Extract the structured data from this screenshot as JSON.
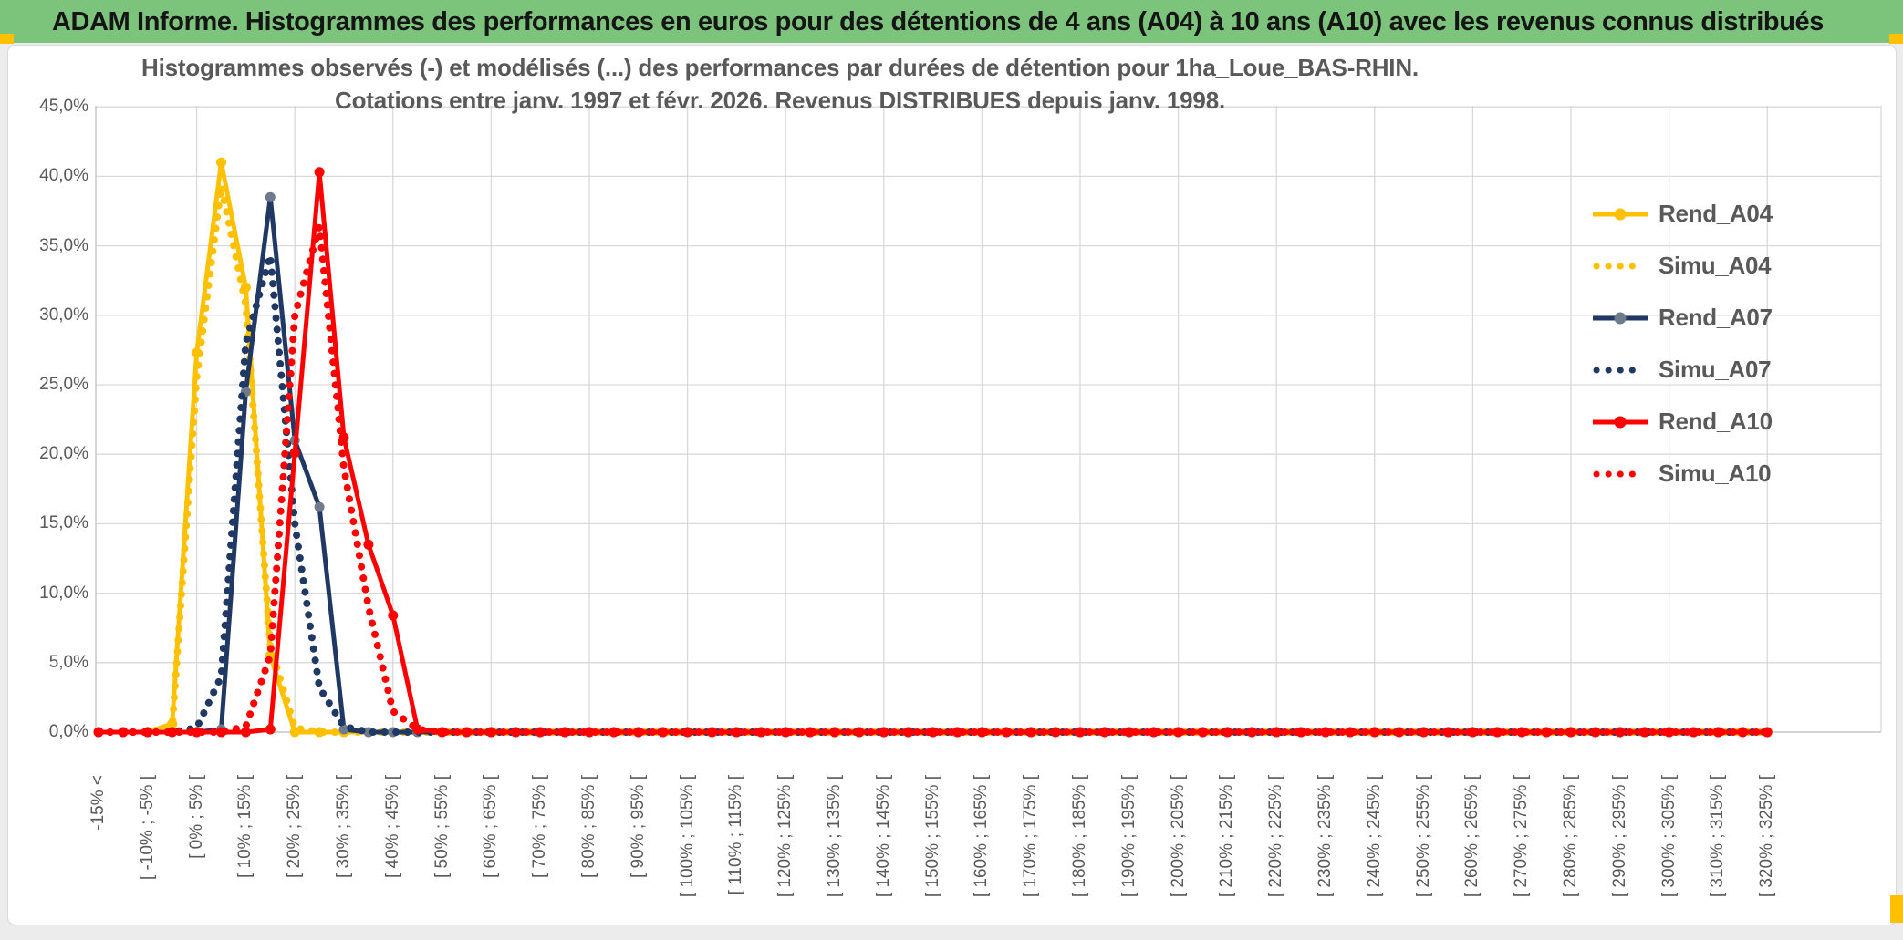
{
  "window": {
    "header_title": "ADAM Informe. Histogrammes des performances en euros pour des détentions de 4 ans (A04) à 10 ans (A10) avec les revenus connus distribués",
    "header_bg": "#7CC47C",
    "accent_color": "#FFC000"
  },
  "chart_data": {
    "type": "line",
    "title": "Histogrammes observés (-) et modélisés (...) des performances par durées de détention pour 1ha_Loue_BAS-RHIN.",
    "subtitle": "Cotations entre janv. 1997 et févr. 2026. Revenus DISTRIBUES depuis janv. 1998.",
    "ylabel": "",
    "xlabel": "",
    "ylim": [
      0,
      45
    ],
    "y_tick_step_pct": 5,
    "y_ticks": [
      "0,0%",
      "5,0%",
      "10,0%",
      "15,0%",
      "20,0%",
      "25,0%",
      "30,0%",
      "35,0%",
      "40,0%",
      "45,0%"
    ],
    "grid": "horizontal every 5%, vertical every 4 bins",
    "legend_position": "right-inside",
    "text_color": "#595959",
    "gridline_color": "#D9D9D9",
    "axis_color": "#BFBFBF",
    "x_labels": [
      "-15% <",
      "",
      "[ -10% ; -5% [",
      "",
      "[ 0% ; 5% [",
      "",
      "[ 10% ; 15% [",
      "",
      "[ 20% ; 25% [",
      "",
      "[ 30% ; 35% [",
      "",
      "[ 40% ; 45% [",
      "",
      "[ 50% ; 55% [",
      "",
      "[ 60% ; 65% [",
      "",
      "[ 70% ; 75% [",
      "",
      "[ 80% ; 85% [",
      "",
      "[ 90% ; 95% [",
      "",
      "[ 100% ; 105% [",
      "",
      "[ 110% ; 115% [",
      "",
      "[ 120% ; 125% [",
      "",
      "[ 130% ; 135% [",
      "",
      "[ 140% ; 145% [",
      "",
      "[ 150% ; 155% [",
      "",
      "[ 160% ; 165% [",
      "",
      "[ 170% ; 175% [",
      "",
      "[ 180% ; 185% [",
      "",
      "[ 190% ; 195% [",
      "",
      "[ 200% ; 205% [",
      "",
      "[ 210% ; 215% [",
      "",
      "[ 220% ; 225% [",
      "",
      "[ 230% ; 235% [",
      "",
      "[ 240% ; 245% [",
      "",
      "[ 250% ; 255% [",
      "",
      "[ 260% ; 265% [",
      "",
      "[ 270% ; 275% [",
      "",
      "[ 280% ; 285% [",
      "",
      "[ 290% ; 295% [",
      "",
      "[ 300% ; 305% [",
      "",
      "[ 310% ; 315% [",
      "",
      "[ 320% ; 325% ["
    ],
    "series": [
      {
        "name": "Rend_A04",
        "color": "#FFC000",
        "style": "solid",
        "marker_color": "#FFC000",
        "values": [
          0,
          0,
          0,
          0.6,
          27.3,
          41,
          32,
          5.5,
          0,
          0,
          0,
          0,
          0,
          0,
          0,
          0,
          0,
          0,
          0,
          0,
          0,
          0,
          0,
          0,
          0,
          0,
          0,
          0,
          0,
          0,
          0,
          0,
          0,
          0,
          0,
          0,
          0,
          0,
          0,
          0,
          0,
          0,
          0,
          0,
          0,
          0,
          0,
          0,
          0,
          0,
          0,
          0,
          0,
          0,
          0,
          0,
          0,
          0,
          0,
          0,
          0,
          0,
          0,
          0,
          0,
          0,
          0,
          0,
          0
        ]
      },
      {
        "name": "Simu_A04",
        "color": "#FFC000",
        "style": "dotted",
        "values": [
          0,
          0,
          0,
          0.4,
          25.5,
          39.3,
          30.8,
          6.2,
          0.3,
          0,
          0,
          0,
          0,
          0,
          0,
          0,
          0,
          0,
          0,
          0,
          0,
          0,
          0,
          0,
          0,
          0,
          0,
          0,
          0,
          0,
          0,
          0,
          0,
          0,
          0,
          0,
          0,
          0,
          0,
          0,
          0,
          0,
          0,
          0,
          0,
          0,
          0,
          0,
          0,
          0,
          0,
          0,
          0,
          0,
          0,
          0,
          0,
          0,
          0,
          0,
          0,
          0,
          0,
          0,
          0,
          0,
          0,
          0,
          0
        ]
      },
      {
        "name": "Rend_A07",
        "color": "#1F3864",
        "style": "solid",
        "marker_color": "#6E7B8D",
        "values": [
          0,
          0,
          0,
          0,
          0,
          0.2,
          24.5,
          38.5,
          21,
          16.2,
          0.2,
          0,
          0,
          0,
          0,
          0,
          0,
          0,
          0,
          0,
          0,
          0,
          0,
          0,
          0,
          0,
          0,
          0,
          0,
          0,
          0,
          0,
          0,
          0,
          0,
          0,
          0,
          0,
          0,
          0,
          0,
          0,
          0,
          0,
          0,
          0,
          0,
          0,
          0,
          0,
          0,
          0,
          0,
          0,
          0,
          0,
          0,
          0,
          0,
          0,
          0,
          0,
          0,
          0,
          0,
          0,
          0,
          0,
          0
        ]
      },
      {
        "name": "Simu_A07",
        "color": "#1F3864",
        "style": "dotted",
        "values": [
          0,
          0,
          0,
          0,
          0.3,
          4,
          28,
          34.3,
          15,
          3.2,
          0.4,
          0,
          0,
          0,
          0,
          0,
          0,
          0,
          0,
          0,
          0,
          0,
          0,
          0,
          0,
          0,
          0,
          0,
          0,
          0,
          0,
          0,
          0,
          0,
          0,
          0,
          0,
          0,
          0,
          0,
          0,
          0,
          0,
          0,
          0,
          0,
          0,
          0,
          0,
          0,
          0,
          0,
          0,
          0,
          0,
          0,
          0,
          0,
          0,
          0,
          0,
          0,
          0,
          0,
          0,
          0,
          0,
          0,
          0
        ]
      },
      {
        "name": "Rend_A10",
        "color": "#FF0000",
        "style": "solid",
        "marker_color": "#FF0000",
        "values": [
          0,
          0,
          0,
          0,
          0,
          0,
          0,
          0.2,
          20.1,
          40.3,
          21.2,
          13.5,
          8.4,
          0.2,
          0,
          0,
          0,
          0,
          0,
          0,
          0,
          0,
          0,
          0,
          0,
          0,
          0,
          0,
          0,
          0,
          0,
          0,
          0,
          0,
          0,
          0,
          0,
          0,
          0,
          0,
          0,
          0,
          0,
          0,
          0,
          0,
          0,
          0,
          0,
          0,
          0,
          0,
          0,
          0,
          0,
          0,
          0,
          0,
          0,
          0,
          0,
          0,
          0,
          0,
          0,
          0,
          0,
          0,
          0
        ]
      },
      {
        "name": "Simu_A10",
        "color": "#FF0000",
        "style": "dotted",
        "values": [
          0,
          0,
          0,
          0,
          0,
          0,
          0.4,
          5.5,
          30,
          36.4,
          19,
          9,
          1.5,
          0.2,
          0,
          0,
          0,
          0,
          0,
          0,
          0,
          0,
          0,
          0,
          0,
          0,
          0,
          0,
          0,
          0,
          0,
          0,
          0,
          0,
          0,
          0,
          0,
          0,
          0,
          0,
          0,
          0,
          0,
          0,
          0,
          0,
          0,
          0,
          0,
          0,
          0,
          0,
          0,
          0,
          0,
          0,
          0,
          0,
          0,
          0,
          0,
          0,
          0,
          0,
          0,
          0,
          0,
          0,
          0
        ]
      }
    ]
  }
}
